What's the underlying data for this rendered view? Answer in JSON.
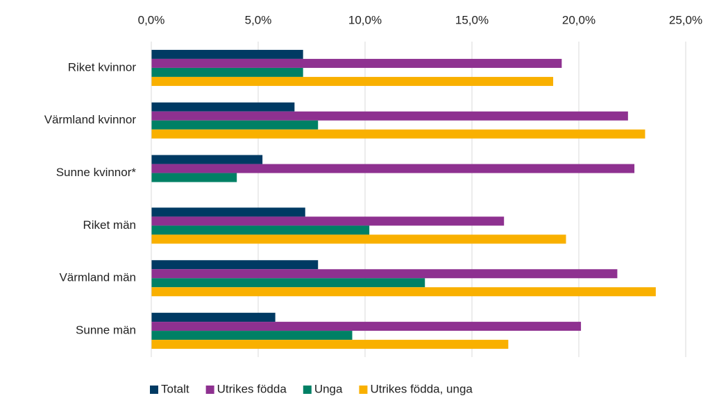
{
  "chart_data": {
    "type": "hbar",
    "categories": [
      "Riket kvinnor",
      "Värmland kvinnor",
      "Sunne kvinnor*",
      "Riket män",
      "Värmland män",
      "Sunne män"
    ],
    "series": [
      {
        "name": "Totalt",
        "color": "#003a63",
        "values": [
          7.1,
          6.7,
          5.2,
          7.2,
          7.8,
          5.8
        ]
      },
      {
        "name": "Utrikes födda",
        "color": "#8e3190",
        "values": [
          19.2,
          22.3,
          22.6,
          16.5,
          21.8,
          20.1
        ]
      },
      {
        "name": "Unga",
        "color": "#008065",
        "values": [
          7.1,
          7.8,
          4.0,
          10.2,
          12.8,
          9.4
        ]
      },
      {
        "name": "Utrikes födda, unga",
        "color": "#f9b000",
        "values": [
          18.8,
          23.1,
          null,
          19.4,
          23.6,
          16.7
        ]
      }
    ],
    "xlim": [
      0,
      25
    ],
    "xticks": [
      {
        "value": 0,
        "label": "0,0%"
      },
      {
        "value": 5,
        "label": "5,0%"
      },
      {
        "value": 10,
        "label": "10,0%"
      },
      {
        "value": 15,
        "label": "15,0%"
      },
      {
        "value": 20,
        "label": "20,0%"
      },
      {
        "value": 25,
        "label": "25,0%"
      }
    ],
    "grid": true,
    "legend": "bottom"
  }
}
